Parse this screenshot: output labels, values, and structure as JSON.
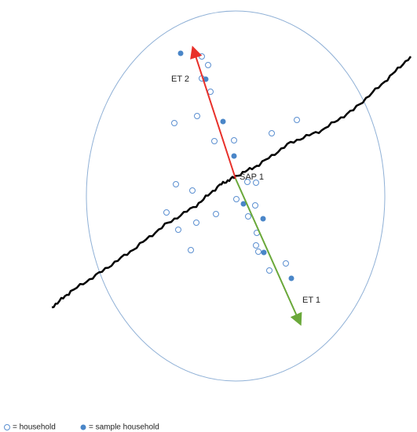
{
  "labels": {
    "et2": "ET 2",
    "sap1": "SAP 1",
    "et1": "ET 1"
  },
  "legend": {
    "household": "= household",
    "sample_household": "= sample household"
  }
}
